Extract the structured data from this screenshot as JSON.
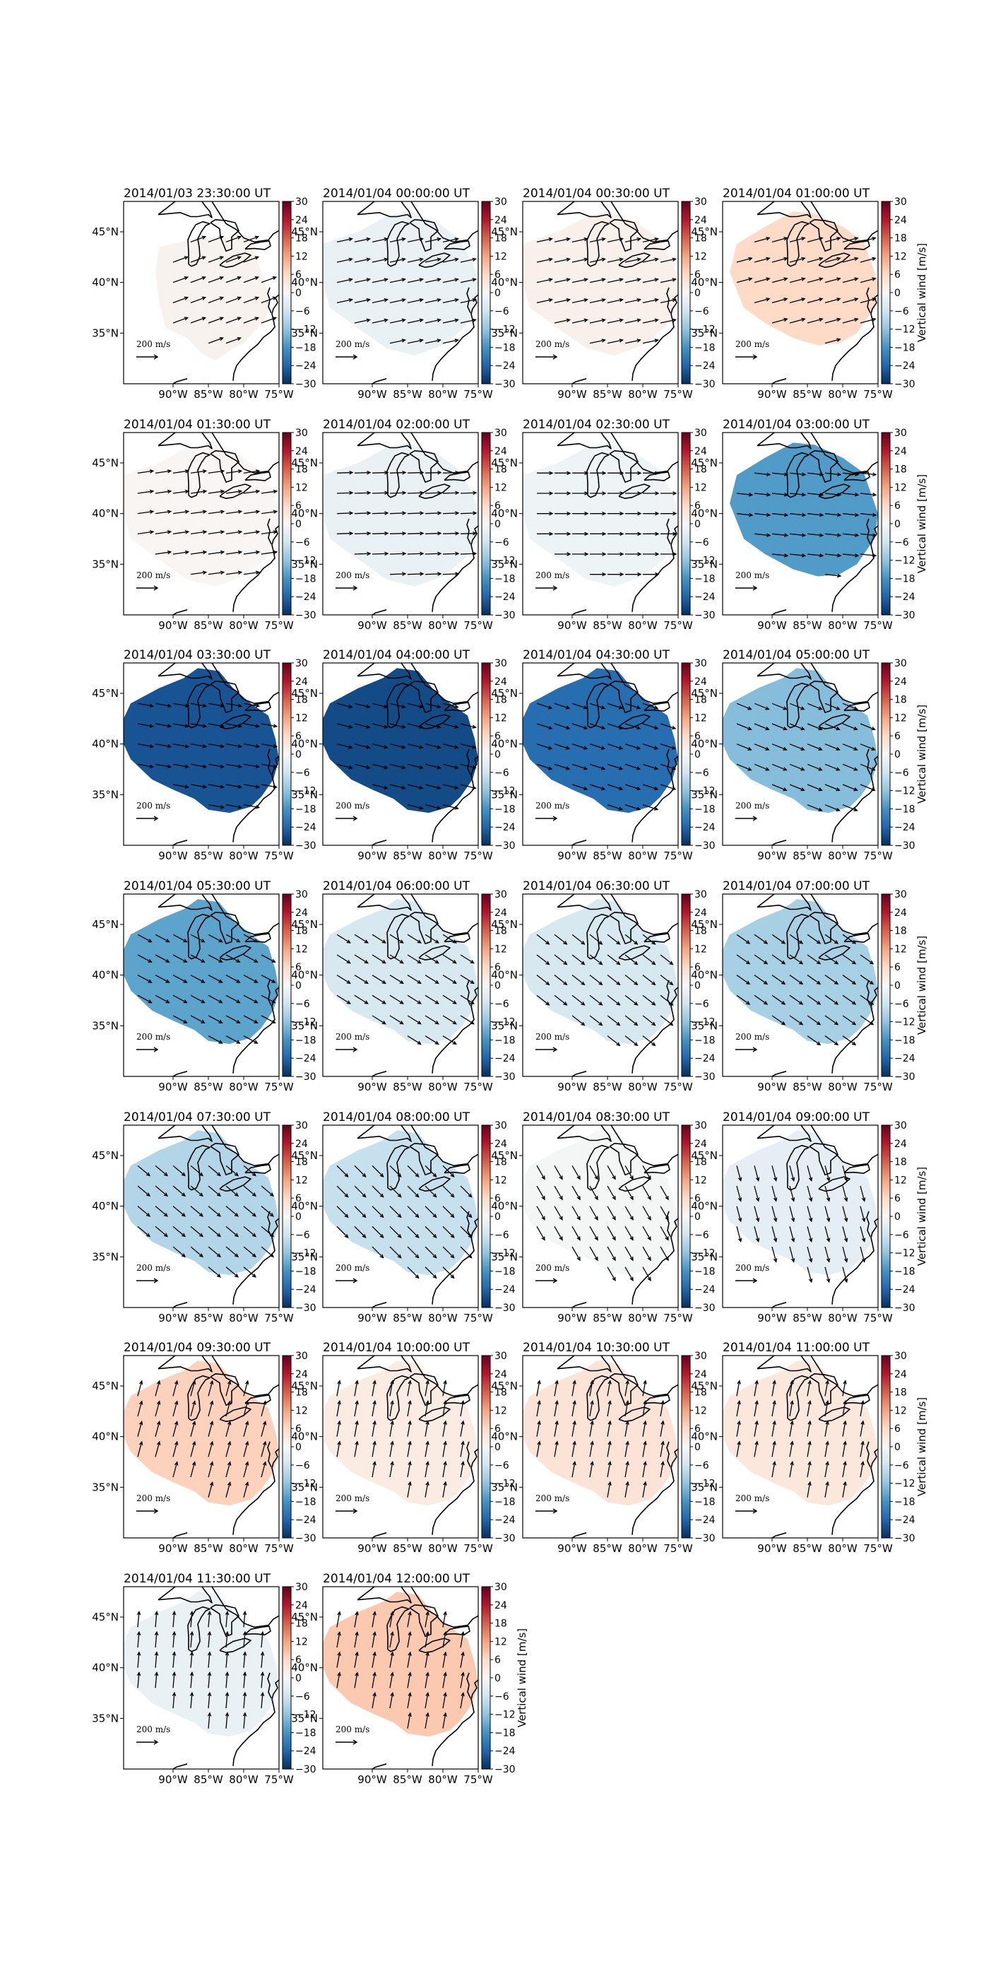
{
  "chart_data": {
    "type": "heatmap",
    "figure": "grid of map panels, Great Lakes / eastern US, filled vertical wind with horizontal wind vectors",
    "x_tick_labels": [
      "90°W",
      "85°W",
      "80°W",
      "75°W"
    ],
    "x_ticks_lon": [
      -90,
      -85,
      -80,
      -75
    ],
    "y_tick_labels": [
      "35°N",
      "40°N",
      "45°N"
    ],
    "y_ticks_lat": [
      35,
      40,
      45
    ],
    "lon_range": [
      -97,
      -75
    ],
    "lat_range": [
      30,
      48
    ],
    "colorbar": {
      "label": "Vertical wind [m/s]",
      "ticks": [
        "30",
        "24",
        "18",
        "12",
        "6",
        "0",
        "−6",
        "−12",
        "−18",
        "−24",
        "−30"
      ],
      "vmin": -30,
      "vmax": 30,
      "colormap": "RdBu_r"
    },
    "vector_key_label": "200 m/s",
    "vector_key_value": 200,
    "panels": [
      {
        "title": "2014/01/03 23:30:00 UT",
        "value": 1,
        "region": "small",
        "arrow_angle": 20
      },
      {
        "title": "2014/01/04 00:00:00 UT",
        "value": -2,
        "region": "wide",
        "arrow_angle": 12
      },
      {
        "title": "2014/01/04 00:30:00 UT",
        "value": 1.5,
        "region": "wide",
        "arrow_angle": 12
      },
      {
        "title": "2014/01/04 01:00:00 UT",
        "value": 6,
        "region": "medium",
        "arrow_angle": 15
      },
      {
        "title": "2014/01/04 01:30:00 UT",
        "value": 0.5,
        "region": "wide",
        "arrow_angle": 8
      },
      {
        "title": "2014/01/04 02:00:00 UT",
        "value": -2,
        "region": "wide",
        "arrow_angle": 2
      },
      {
        "title": "2014/01/04 02:30:00 UT",
        "value": -1.5,
        "region": "wide",
        "arrow_angle": 0
      },
      {
        "title": "2014/01/04 03:00:00 UT",
        "value": -17,
        "region": "medium",
        "arrow_angle": -6
      },
      {
        "title": "2014/01/04 03:30:00 UT",
        "value": -26,
        "region": "large",
        "arrow_angle": -10
      },
      {
        "title": "2014/01/04 04:00:00 UT",
        "value": -27,
        "region": "large",
        "arrow_angle": -14
      },
      {
        "title": "2014/01/04 04:30:00 UT",
        "value": -23,
        "region": "large",
        "arrow_angle": -18
      },
      {
        "title": "2014/01/04 05:00:00 UT",
        "value": -13,
        "region": "large",
        "arrow_angle": -22
      },
      {
        "title": "2014/01/04 05:30:00 UT",
        "value": -16,
        "region": "large",
        "arrow_angle": -28
      },
      {
        "title": "2014/01/04 06:00:00 UT",
        "value": -5,
        "region": "large",
        "arrow_angle": -32
      },
      {
        "title": "2014/01/04 06:30:00 UT",
        "value": -5,
        "region": "large",
        "arrow_angle": -38
      },
      {
        "title": "2014/01/04 07:00:00 UT",
        "value": -10,
        "region": "large",
        "arrow_angle": -35
      },
      {
        "title": "2014/01/04 07:30:00 UT",
        "value": -9,
        "region": "large",
        "arrow_angle": -40
      },
      {
        "title": "2014/01/04 08:00:00 UT",
        "value": -7,
        "region": "large",
        "arrow_angle": -45
      },
      {
        "title": "2014/01/04 08:30:00 UT",
        "value": -0.5,
        "region": "large",
        "arrow_angle": -60
      },
      {
        "title": "2014/01/04 09:00:00 UT",
        "value": -3,
        "region": "large",
        "arrow_angle": -75
      },
      {
        "title": "2014/01/04 09:30:00 UT",
        "value": 7,
        "region": "large",
        "arrow_angle": 75
      },
      {
        "title": "2014/01/04 10:00:00 UT",
        "value": 2.5,
        "region": "large",
        "arrow_angle": 80
      },
      {
        "title": "2014/01/04 10:30:00 UT",
        "value": 4,
        "region": "large",
        "arrow_angle": 80
      },
      {
        "title": "2014/01/04 11:00:00 UT",
        "value": 3.5,
        "region": "large",
        "arrow_angle": 80
      },
      {
        "title": "2014/01/04 11:30:00 UT",
        "value": -2,
        "region": "large",
        "arrow_angle": 85
      },
      {
        "title": "2014/01/04 12:00:00 UT",
        "value": 8,
        "region": "large",
        "arrow_angle": 80
      }
    ]
  }
}
